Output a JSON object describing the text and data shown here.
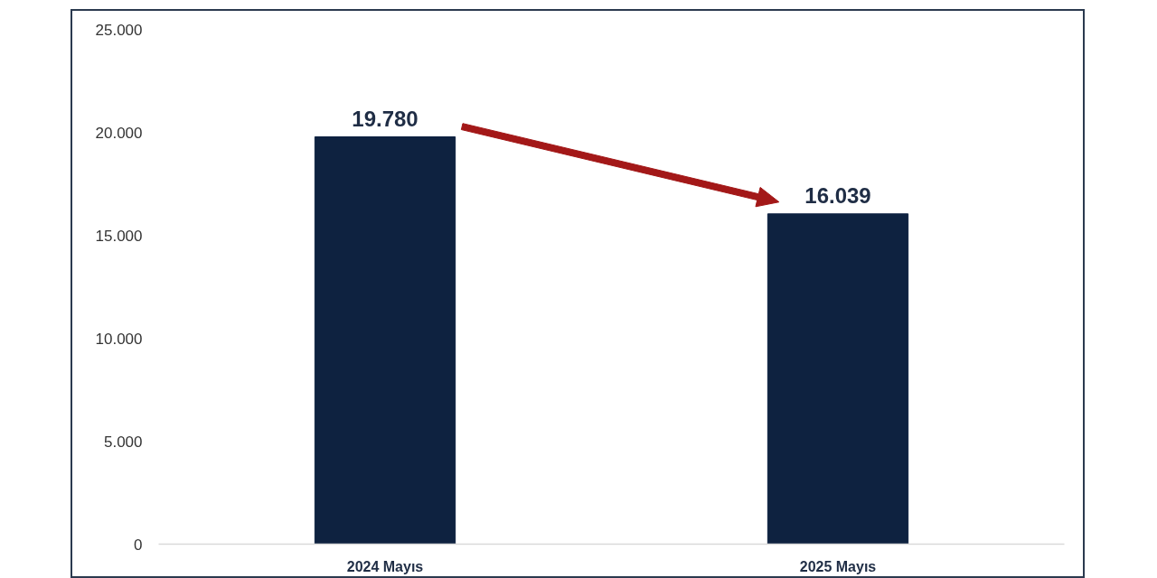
{
  "chart_data": {
    "type": "bar",
    "categories": [
      "2024 Mayıs",
      "2025 Mayıs"
    ],
    "values": [
      19780,
      16039
    ],
    "color": "#0e2240",
    "value_labels": [
      "19.780",
      "16.039"
    ],
    "ylim": [
      0,
      25000
    ],
    "yticks": [
      0,
      {
        "value": 5000,
        "label": "5.000"
      },
      {
        "value": 10000,
        "label": "10.000"
      },
      {
        "value": 15000,
        "label": "15.000"
      },
      {
        "value": 20000,
        "label": "20.000"
      },
      {
        "value": 25000,
        "label": "25.000"
      }
    ]
  }
}
